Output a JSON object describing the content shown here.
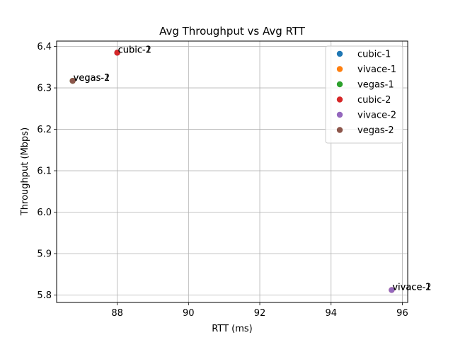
{
  "chart_data": {
    "type": "scatter",
    "title": "Avg Throughput vs Avg RTT",
    "xlabel": "RTT (ms)",
    "ylabel": "Throughput (Mbps)",
    "xlim": [
      86.3,
      96.15
    ],
    "ylim": [
      5.782,
      6.413
    ],
    "xticks": [
      88,
      90,
      92,
      94,
      96
    ],
    "yticks": [
      5.8,
      5.9,
      6.0,
      6.1,
      6.2,
      6.3,
      6.4
    ],
    "xtick_labels": [
      "88",
      "90",
      "92",
      "94",
      "96"
    ],
    "ytick_labels": [
      "5.8",
      "5.9",
      "6.0",
      "6.1",
      "6.2",
      "6.3",
      "6.4"
    ],
    "grid": true,
    "legend_position": "top-right",
    "series": [
      {
        "name": "cubic-1",
        "color": "#1f77b4",
        "x": [
          88.0
        ],
        "y": [
          6.385
        ],
        "label": "cubic-1"
      },
      {
        "name": "vivace-1",
        "color": "#ff7f0e",
        "x": [
          95.7
        ],
        "y": [
          5.812
        ],
        "label": "vivace-1"
      },
      {
        "name": "vegas-1",
        "color": "#2ca02c",
        "x": [
          86.75
        ],
        "y": [
          6.317
        ],
        "label": "vegas-1"
      },
      {
        "name": "cubic-2",
        "color": "#d62728",
        "x": [
          88.0
        ],
        "y": [
          6.385
        ],
        "label": "cubic-2"
      },
      {
        "name": "vivace-2",
        "color": "#9467bd",
        "x": [
          95.7
        ],
        "y": [
          5.812
        ],
        "label": "vivace-2"
      },
      {
        "name": "vegas-2",
        "color": "#8c564b",
        "x": [
          86.75
        ],
        "y": [
          6.317
        ],
        "label": "vegas-2"
      }
    ]
  }
}
